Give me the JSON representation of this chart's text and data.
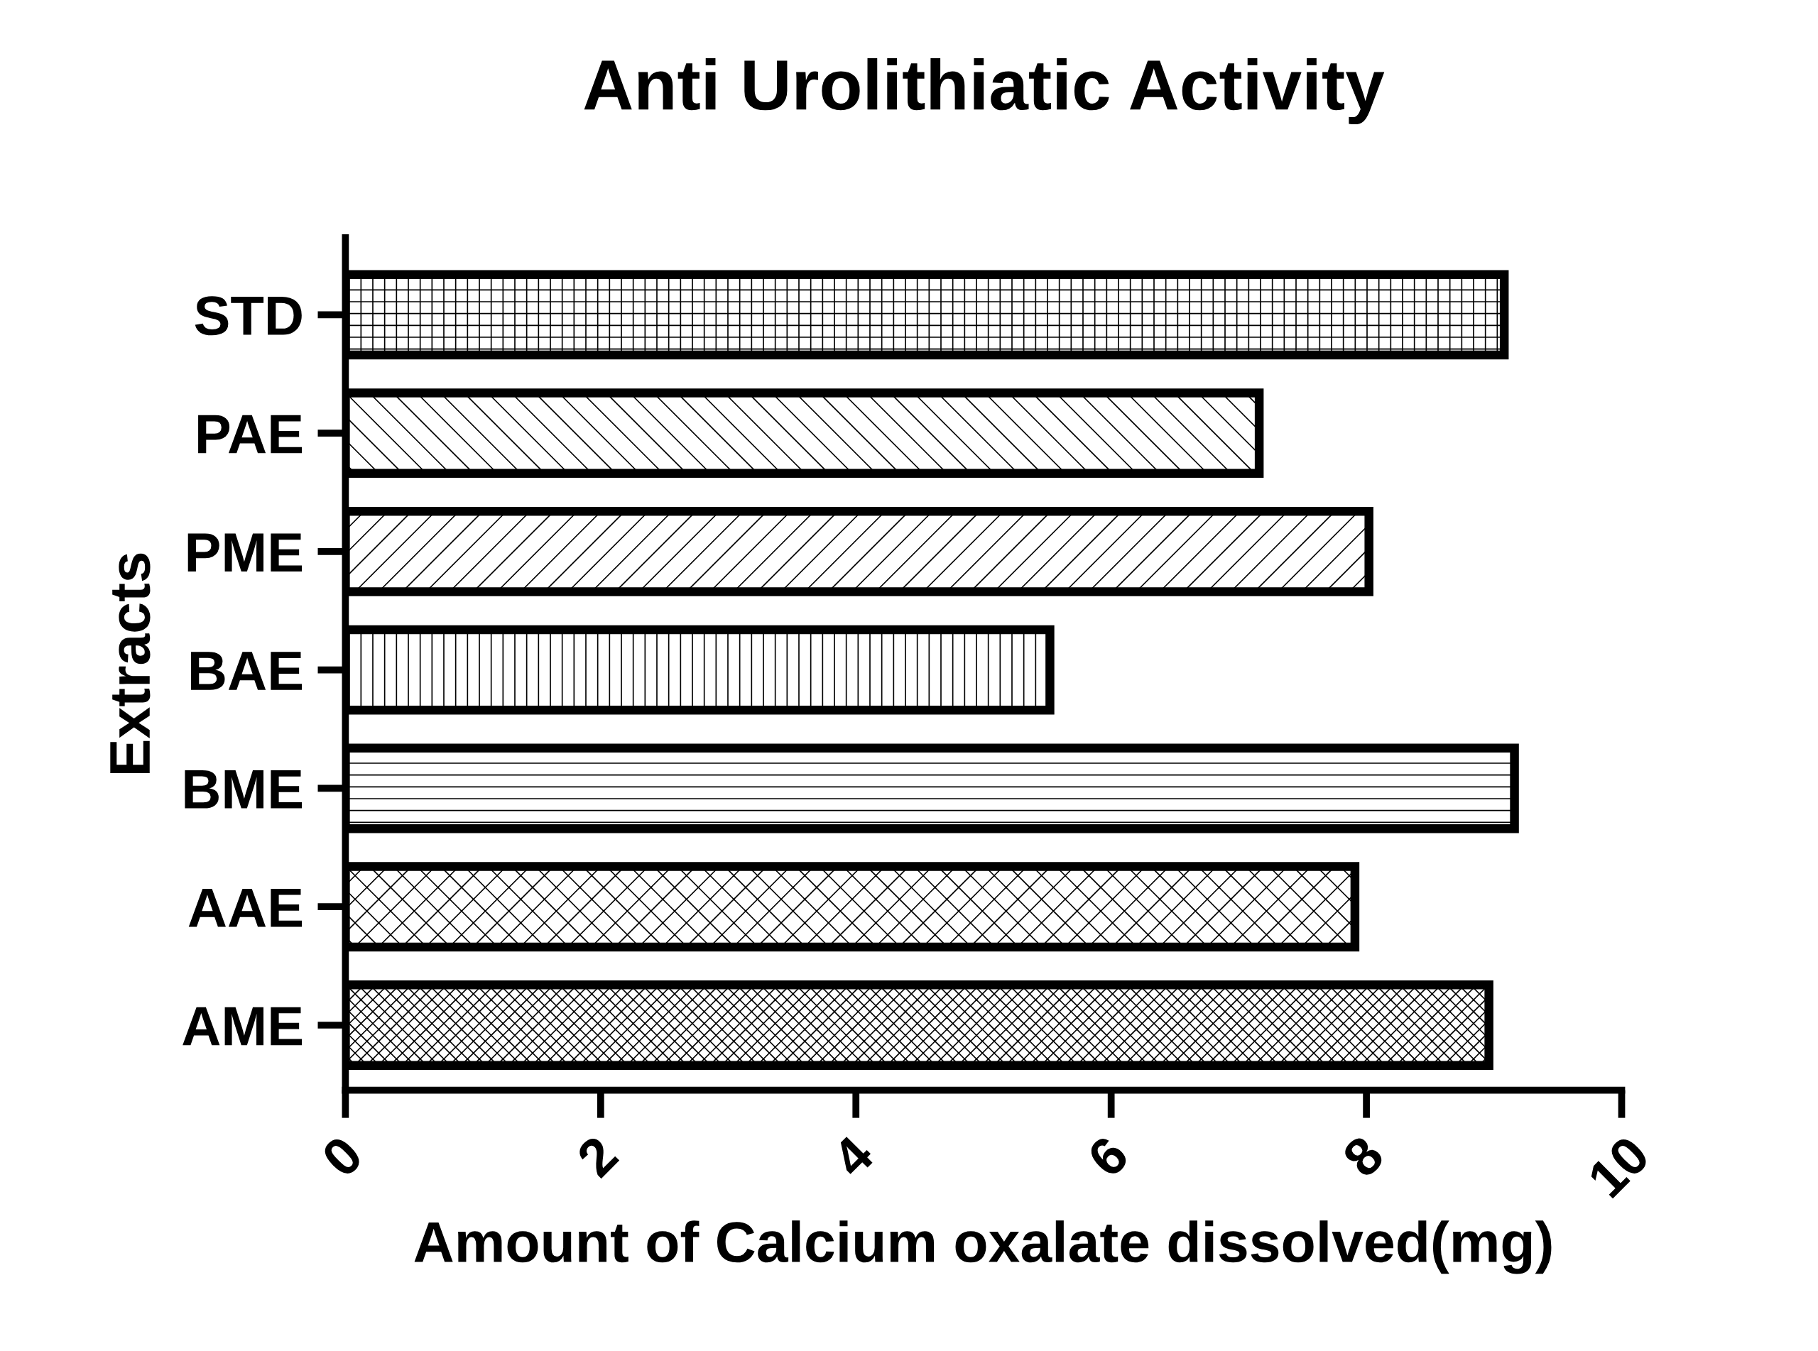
{
  "chart_data": {
    "type": "bar",
    "orientation": "horizontal",
    "title": "Anti Urolithiatic Activity",
    "xlabel": "Amount of Calcium oxalate dissolved(mg)",
    "ylabel": "Extracts",
    "categories": [
      "STD",
      "PAE",
      "PME",
      "BAE",
      "BME",
      "AAE",
      "AME"
    ],
    "values": [
      9.08,
      7.16,
      8.02,
      5.52,
      9.16,
      7.91,
      8.96
    ],
    "colors": [
      "#000000",
      "#000000",
      "#000000",
      "#000000",
      "#000000",
      "#000000",
      "#000000"
    ],
    "xlim": [
      0,
      10
    ],
    "xticks": [
      0,
      2,
      4,
      6,
      8,
      10
    ],
    "grid": false,
    "legend": false
  }
}
